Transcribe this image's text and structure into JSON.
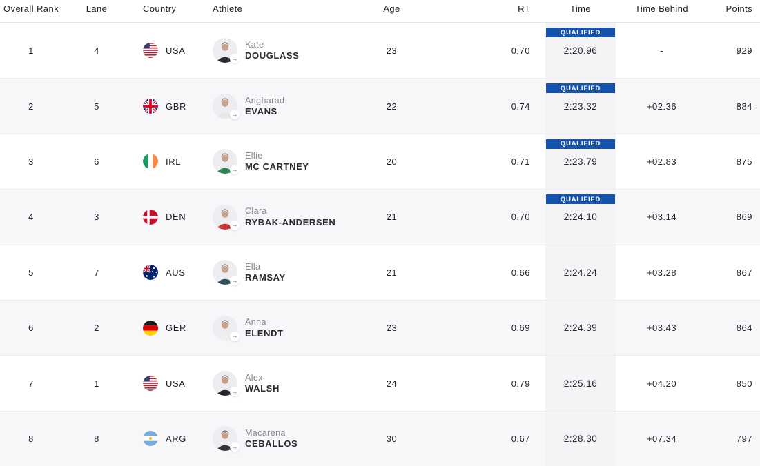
{
  "columns": [
    {
      "key": "rank",
      "label": "Overall Rank"
    },
    {
      "key": "lane",
      "label": "Lane"
    },
    {
      "key": "country",
      "label": "Country"
    },
    {
      "key": "athlete",
      "label": "Athlete"
    },
    {
      "key": "age",
      "label": "Age"
    },
    {
      "key": "rt",
      "label": "RT"
    },
    {
      "key": "time",
      "label": "Time"
    },
    {
      "key": "time_behind",
      "label": "Time Behind"
    },
    {
      "key": "points",
      "label": "Points"
    }
  ],
  "qualified_label": "QUALIFIED",
  "colors": {
    "qualified_badge": "#1553ac",
    "row_alternate": "#f7f7f9",
    "time_column_background": "#f4f4f6",
    "link_arrow_blue": "#2e6cd6"
  },
  "rows": [
    {
      "rank": "1",
      "lane": "4",
      "country_code": "USA",
      "first_name": "Kate",
      "last_name": "DOUGLASS",
      "age": "23",
      "rt": "0.70",
      "time": "2:20.96",
      "qualified": true,
      "time_behind": "-",
      "points": "929",
      "avatar_shirt": "#2b2b31"
    },
    {
      "rank": "2",
      "lane": "5",
      "country_code": "GBR",
      "first_name": "Angharad",
      "last_name": "EVANS",
      "age": "22",
      "rt": "0.74",
      "time": "2:23.32",
      "qualified": true,
      "time_behind": "+02.36",
      "points": "884",
      "avatar_shirt": "#e9e7e6"
    },
    {
      "rank": "3",
      "lane": "6",
      "country_code": "IRL",
      "first_name": "Ellie",
      "last_name": "MC CARTNEY",
      "age": "20",
      "rt": "0.71",
      "time": "2:23.79",
      "qualified": true,
      "time_behind": "+02.83",
      "points": "875",
      "avatar_shirt": "#2f8452"
    },
    {
      "rank": "4",
      "lane": "3",
      "country_code": "DEN",
      "first_name": "Clara",
      "last_name": "RYBAK-ANDERSEN",
      "age": "21",
      "rt": "0.70",
      "time": "2:24.10",
      "qualified": true,
      "time_behind": "+03.14",
      "points": "869",
      "avatar_shirt": "#cc3333"
    },
    {
      "rank": "5",
      "lane": "7",
      "country_code": "AUS",
      "first_name": "Ella",
      "last_name": "RAMSAY",
      "age": "21",
      "rt": "0.66",
      "time": "2:24.24",
      "qualified": false,
      "time_behind": "+03.28",
      "points": "867",
      "avatar_shirt": "#33505e"
    },
    {
      "rank": "6",
      "lane": "2",
      "country_code": "GER",
      "first_name": "Anna",
      "last_name": "ELENDT",
      "age": "23",
      "rt": "0.69",
      "time": "2:24.39",
      "qualified": false,
      "time_behind": "+03.43",
      "points": "864",
      "avatar_shirt": "#f0efee"
    },
    {
      "rank": "7",
      "lane": "1",
      "country_code": "USA",
      "first_name": "Alex",
      "last_name": "WALSH",
      "age": "24",
      "rt": "0.79",
      "time": "2:25.16",
      "qualified": false,
      "time_behind": "+04.20",
      "points": "850",
      "avatar_shirt": "#26262b"
    },
    {
      "rank": "8",
      "lane": "8",
      "country_code": "ARG",
      "first_name": "Macarena",
      "last_name": "CEBALLOS",
      "age": "30",
      "rt": "0.67",
      "time": "2:28.30",
      "qualified": false,
      "time_behind": "+07.34",
      "points": "797",
      "avatar_shirt": "#34343b"
    }
  ]
}
